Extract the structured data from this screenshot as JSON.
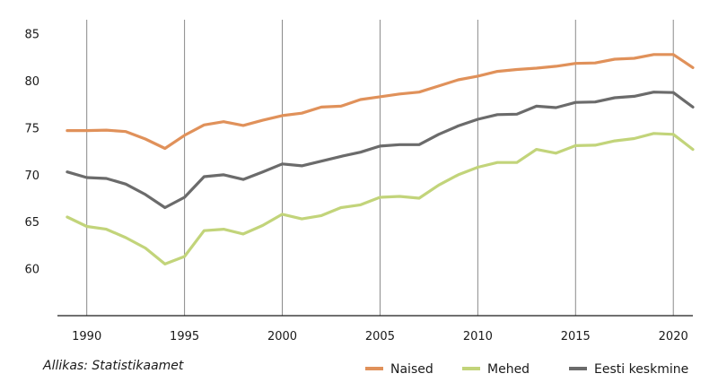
{
  "source": "Allikas: Statistikaamet",
  "chart_data": {
    "type": "line",
    "x": [
      1989,
      1990,
      1991,
      1992,
      1993,
      1994,
      1995,
      1996,
      1997,
      1998,
      1999,
      2000,
      2001,
      2002,
      2003,
      2004,
      2005,
      2006,
      2007,
      2008,
      2009,
      2010,
      2011,
      2012,
      2013,
      2014,
      2015,
      2016,
      2017,
      2018,
      2019,
      2020,
      2021
    ],
    "x_ticks": [
      "1990",
      "1995",
      "2000",
      "2005",
      "2010",
      "2015",
      "2020"
    ],
    "y_ticks": [
      "60",
      "65",
      "70",
      "75",
      "80",
      "85"
    ],
    "xlim": [
      1988.5,
      2021
    ],
    "ylim": [
      55,
      86.5
    ],
    "grid": "vertical",
    "legend_position": "bottom-right",
    "series": [
      {
        "name": "Naised",
        "color": "#e0915a",
        "values": [
          74.7,
          74.7,
          74.75,
          74.6,
          73.8,
          72.8,
          74.2,
          75.3,
          75.65,
          75.25,
          75.8,
          76.3,
          76.55,
          77.2,
          77.3,
          78.0,
          78.3,
          78.6,
          78.8,
          79.45,
          80.1,
          80.5,
          81.0,
          81.2,
          81.35,
          81.55,
          81.85,
          81.9,
          82.3,
          82.4,
          82.8,
          82.8,
          81.4
        ]
      },
      {
        "name": "Mehed",
        "color": "#c2d47a",
        "values": [
          65.5,
          64.5,
          64.2,
          63.3,
          62.2,
          60.5,
          61.3,
          64.05,
          64.2,
          63.7,
          64.6,
          65.8,
          65.3,
          65.65,
          66.5,
          66.8,
          67.6,
          67.7,
          67.5,
          68.9,
          70.0,
          70.8,
          71.3,
          71.3,
          72.7,
          72.3,
          73.1,
          73.15,
          73.6,
          73.85,
          74.4,
          74.3,
          72.7
        ]
      },
      {
        "name": "Eesti keskmine",
        "color": "#6b6b6b",
        "values": [
          70.3,
          69.7,
          69.6,
          69.0,
          67.9,
          66.5,
          67.6,
          69.8,
          70.0,
          69.5,
          70.3,
          71.15,
          70.95,
          71.45,
          71.95,
          72.4,
          73.05,
          73.2,
          73.2,
          74.3,
          75.2,
          75.9,
          76.4,
          76.45,
          77.3,
          77.15,
          77.7,
          77.75,
          78.2,
          78.35,
          78.8,
          78.75,
          77.2
        ]
      }
    ]
  }
}
